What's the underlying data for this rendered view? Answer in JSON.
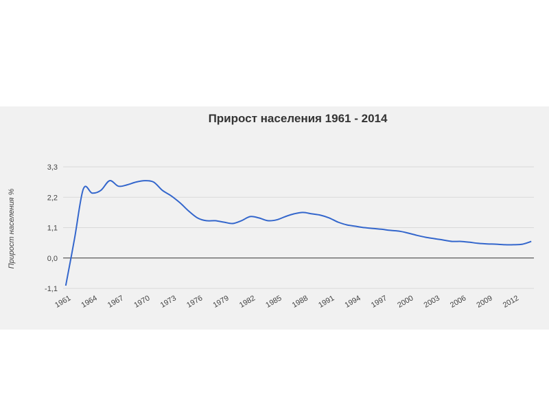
{
  "chart_data": {
    "type": "line",
    "title": "Прирост населения 1961 - 2014",
    "xlabel": "",
    "ylabel": "Прирост населения %",
    "ylim": [
      -1.1,
      3.3
    ],
    "y_ticks": [
      "3,3",
      "2,2",
      "1,1",
      "0,0",
      "-1,1"
    ],
    "y_tick_values": [
      3.3,
      2.2,
      1.1,
      0.0,
      -1.1
    ],
    "x_ticks": [
      "1961",
      "1964",
      "1967",
      "1970",
      "1973",
      "1976",
      "1979",
      "1982",
      "1985",
      "1988",
      "1991",
      "1994",
      "1997",
      "2000",
      "2003",
      "2006",
      "2009",
      "2012"
    ],
    "x_tick_values": [
      1961,
      1964,
      1967,
      1970,
      1973,
      1976,
      1979,
      1982,
      1985,
      1988,
      1991,
      1994,
      1997,
      2000,
      2003,
      2006,
      2009,
      2012
    ],
    "grid": true,
    "colors": {
      "line": "#3366cc",
      "grid": "#d9d9d9",
      "zero_line": "#333333"
    },
    "series": [
      {
        "x": [
          1961,
          1962,
          1963,
          1964,
          1965,
          1966,
          1967,
          1968,
          1969,
          1970,
          1971,
          1972,
          1973,
          1974,
          1975,
          1976,
          1977,
          1978,
          1979,
          1980,
          1981,
          1982,
          1983,
          1984,
          1985,
          1986,
          1987,
          1988,
          1989,
          1990,
          1991,
          1992,
          1993,
          1994,
          1995,
          1996,
          1997,
          1998,
          1999,
          2000,
          2001,
          2002,
          2003,
          2004,
          2005,
          2006,
          2007,
          2008,
          2009,
          2010,
          2011,
          2012,
          2013,
          2014
        ],
        "values": [
          -1.0,
          0.7,
          2.5,
          2.35,
          2.45,
          2.8,
          2.6,
          2.65,
          2.75,
          2.8,
          2.75,
          2.45,
          2.25,
          2.0,
          1.7,
          1.45,
          1.35,
          1.35,
          1.3,
          1.25,
          1.35,
          1.5,
          1.45,
          1.35,
          1.38,
          1.5,
          1.6,
          1.65,
          1.6,
          1.55,
          1.45,
          1.3,
          1.2,
          1.15,
          1.1,
          1.07,
          1.04,
          1.0,
          0.97,
          0.9,
          0.82,
          0.75,
          0.7,
          0.65,
          0.6,
          0.6,
          0.57,
          0.53,
          0.51,
          0.5,
          0.48,
          0.48,
          0.5,
          0.6
        ]
      }
    ]
  }
}
